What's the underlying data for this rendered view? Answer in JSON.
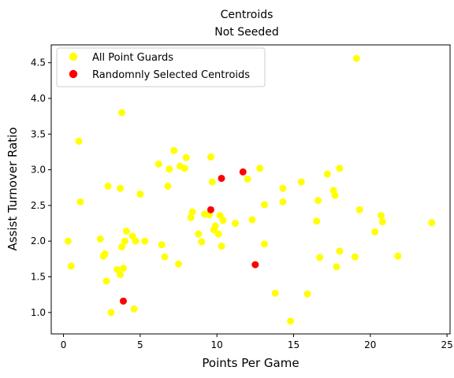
{
  "chart_data": {
    "type": "scatter",
    "title": [
      "Centroids",
      "Not Seeded"
    ],
    "xlabel": "Points Per Game",
    "ylabel": "Assist Turnover Ratio",
    "xlim": [
      -0.8,
      25.2
    ],
    "ylim": [
      0.7,
      4.75
    ],
    "xticks": [
      0,
      5,
      10,
      15,
      20,
      25
    ],
    "yticks": [
      1.0,
      1.5,
      2.0,
      2.5,
      3.0,
      3.5,
      4.0,
      4.5
    ],
    "grid": false,
    "legend_position": "top-left",
    "series": [
      {
        "name": "All Point Guards",
        "color": "#ffff00",
        "points": [
          [
            0.3,
            2.0
          ],
          [
            0.5,
            1.65
          ],
          [
            1.0,
            3.4
          ],
          [
            1.1,
            2.55
          ],
          [
            2.4,
            2.03
          ],
          [
            2.6,
            1.79
          ],
          [
            2.7,
            1.82
          ],
          [
            2.8,
            1.44
          ],
          [
            2.9,
            2.77
          ],
          [
            3.1,
            1.0
          ],
          [
            3.5,
            1.6
          ],
          [
            3.7,
            1.53
          ],
          [
            3.7,
            2.74
          ],
          [
            3.8,
            3.8
          ],
          [
            3.8,
            1.92
          ],
          [
            3.9,
            1.62
          ],
          [
            4.0,
            2.0
          ],
          [
            4.1,
            2.14
          ],
          [
            4.5,
            2.07
          ],
          [
            4.6,
            1.05
          ],
          [
            4.7,
            2.0
          ],
          [
            5.0,
            2.66
          ],
          [
            5.3,
            2.0
          ],
          [
            6.2,
            3.08
          ],
          [
            6.4,
            1.95
          ],
          [
            6.6,
            1.78
          ],
          [
            6.8,
            2.77
          ],
          [
            6.9,
            3.01
          ],
          [
            7.2,
            3.27
          ],
          [
            7.5,
            1.68
          ],
          [
            7.6,
            3.05
          ],
          [
            7.9,
            3.02
          ],
          [
            8.0,
            3.17
          ],
          [
            8.3,
            2.33
          ],
          [
            8.4,
            2.41
          ],
          [
            8.8,
            2.1
          ],
          [
            9.0,
            1.99
          ],
          [
            9.2,
            2.38
          ],
          [
            9.5,
            2.37
          ],
          [
            9.6,
            3.18
          ],
          [
            9.7,
            2.83
          ],
          [
            9.8,
            2.16
          ],
          [
            9.9,
            2.21
          ],
          [
            10.1,
            2.1
          ],
          [
            10.2,
            2.36
          ],
          [
            10.3,
            1.93
          ],
          [
            10.4,
            2.29
          ],
          [
            11.2,
            2.25
          ],
          [
            12.0,
            2.87
          ],
          [
            12.3,
            2.3
          ],
          [
            12.8,
            3.02
          ],
          [
            13.1,
            2.51
          ],
          [
            13.1,
            1.96
          ],
          [
            13.8,
            1.27
          ],
          [
            14.3,
            2.74
          ],
          [
            14.3,
            2.55
          ],
          [
            14.8,
            0.88
          ],
          [
            15.5,
            2.83
          ],
          [
            15.9,
            1.26
          ],
          [
            16.5,
            2.28
          ],
          [
            16.6,
            2.57
          ],
          [
            16.7,
            1.77
          ],
          [
            17.2,
            2.94
          ],
          [
            17.6,
            2.71
          ],
          [
            17.7,
            2.64
          ],
          [
            17.8,
            1.64
          ],
          [
            18.0,
            3.02
          ],
          [
            18.0,
            1.86
          ],
          [
            19.0,
            1.78
          ],
          [
            19.1,
            4.56
          ],
          [
            19.3,
            2.44
          ],
          [
            20.3,
            2.13
          ],
          [
            20.7,
            2.36
          ],
          [
            20.8,
            2.27
          ],
          [
            21.8,
            1.79
          ],
          [
            24.0,
            2.26
          ]
        ]
      },
      {
        "name": "Randomnly Selected Centroids",
        "color": "#ff0000",
        "points": [
          [
            3.9,
            1.16
          ],
          [
            9.6,
            2.44
          ],
          [
            10.3,
            2.88
          ],
          [
            11.7,
            2.97
          ],
          [
            12.5,
            1.67
          ]
        ]
      }
    ]
  }
}
